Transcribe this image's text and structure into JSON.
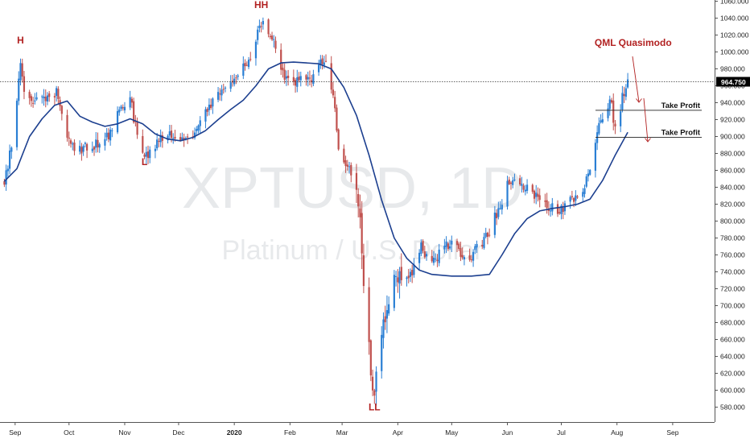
{
  "chart_data": {
    "type": "candlestick",
    "watermark": {
      "line1": "XPTUSD, 1D",
      "line2": "Platinum / U.S. Dollar"
    },
    "y_axis": {
      "ylim": [
        560,
        1060
      ],
      "ticks": [
        "1060.000",
        "1040.000",
        "1020.000",
        "1000.000",
        "980.000",
        "960.000",
        "940.000",
        "920.000",
        "900.000",
        "880.000",
        "860.000",
        "840.000",
        "820.000",
        "800.000",
        "780.000",
        "760.000",
        "740.000",
        "720.000",
        "700.000",
        "680.000",
        "660.000",
        "640.000",
        "620.000",
        "600.000",
        "580.000"
      ]
    },
    "x_axis": {
      "ticks": [
        {
          "label": "Sep",
          "bold": false
        },
        {
          "label": "Oct",
          "bold": false
        },
        {
          "label": "Nov",
          "bold": false
        },
        {
          "label": "Dec",
          "bold": false
        },
        {
          "label": "2020",
          "bold": true
        },
        {
          "label": "Feb",
          "bold": false
        },
        {
          "label": "Mar",
          "bold": false
        },
        {
          "label": "Apr",
          "bold": false
        },
        {
          "label": "May",
          "bold": false
        },
        {
          "label": "Jun",
          "bold": false
        },
        {
          "label": "Jul",
          "bold": false
        },
        {
          "label": "Aug",
          "bold": false
        },
        {
          "label": "Sep",
          "bold": false
        }
      ]
    },
    "current_price": {
      "value": 964.75,
      "label": "964.750"
    },
    "up_color": "#2a7fd4",
    "down_color": "#c0504d",
    "ma_color": "#1c3f8f",
    "annotation_color": "#b22222",
    "annotations": [
      {
        "text": "H",
        "date": "2019-09-04",
        "price": 1010
      },
      {
        "text": "L",
        "date": "2019-11-12",
        "price": 866
      },
      {
        "text": "HH",
        "date": "2020-01-16",
        "price": 1052
      },
      {
        "text": "LL",
        "date": "2020-03-19",
        "price": 576
      },
      {
        "text": "QML Quasimodo",
        "date": "2020-08-10",
        "price": 1007
      }
    ],
    "take_profit_levels": [
      {
        "label": "Take Profit",
        "price": 931
      },
      {
        "label": "Take Profit",
        "price": 899
      }
    ],
    "anchors": [
      [
        "2019-08-26",
        848
      ],
      [
        "2019-08-29",
        878
      ],
      [
        "2019-09-02",
        940
      ],
      [
        "2019-09-04",
        985
      ],
      [
        "2019-09-06",
        955
      ],
      [
        "2019-09-12",
        940
      ],
      [
        "2019-09-19",
        948
      ],
      [
        "2019-09-24",
        952
      ],
      [
        "2019-09-27",
        925
      ],
      [
        "2019-10-02",
        887
      ],
      [
        "2019-10-09",
        885
      ],
      [
        "2019-10-16",
        890
      ],
      [
        "2019-10-23",
        900
      ],
      [
        "2019-10-29",
        935
      ],
      [
        "2019-11-04",
        945
      ],
      [
        "2019-11-08",
        900
      ],
      [
        "2019-11-12",
        873
      ],
      [
        "2019-11-19",
        895
      ],
      [
        "2019-11-26",
        900
      ],
      [
        "2019-12-03",
        895
      ],
      [
        "2019-12-10",
        905
      ],
      [
        "2019-12-17",
        930
      ],
      [
        "2019-12-24",
        950
      ],
      [
        "2019-12-31",
        968
      ],
      [
        "2020-01-08",
        985
      ],
      [
        "2020-01-14",
        1020
      ],
      [
        "2020-01-17",
        1035
      ],
      [
        "2020-01-23",
        1010
      ],
      [
        "2020-01-29",
        968
      ],
      [
        "2020-02-05",
        965
      ],
      [
        "2020-02-12",
        968
      ],
      [
        "2020-02-18",
        985
      ],
      [
        "2020-02-21",
        990
      ],
      [
        "2020-02-25",
        950
      ],
      [
        "2020-02-28",
        880
      ],
      [
        "2020-03-04",
        865
      ],
      [
        "2020-03-09",
        850
      ],
      [
        "2020-03-12",
        760
      ],
      [
        "2020-03-16",
        650
      ],
      [
        "2020-03-19",
        592
      ],
      [
        "2020-03-24",
        680
      ],
      [
        "2020-03-30",
        740
      ],
      [
        "2020-04-07",
        730
      ],
      [
        "2020-04-14",
        770
      ],
      [
        "2020-04-21",
        750
      ],
      [
        "2020-04-28",
        775
      ],
      [
        "2020-05-05",
        765
      ],
      [
        "2020-05-12",
        760
      ],
      [
        "2020-05-19",
        775
      ],
      [
        "2020-05-26",
        808
      ],
      [
        "2020-06-02",
        850
      ],
      [
        "2020-06-09",
        842
      ],
      [
        "2020-06-16",
        830
      ],
      [
        "2020-06-23",
        820
      ],
      [
        "2020-06-30",
        810
      ],
      [
        "2020-07-07",
        825
      ],
      [
        "2020-07-14",
        838
      ],
      [
        "2020-07-21",
        905
      ],
      [
        "2020-07-24",
        920
      ],
      [
        "2020-07-28",
        945
      ],
      [
        "2020-07-31",
        912
      ],
      [
        "2020-08-04",
        945
      ],
      [
        "2020-08-07",
        965
      ]
    ],
    "ma_line": [
      [
        "2019-08-26",
        847
      ],
      [
        "2019-09-02",
        862
      ],
      [
        "2019-09-09",
        900
      ],
      [
        "2019-09-16",
        921
      ],
      [
        "2019-09-23",
        937
      ],
      [
        "2019-09-30",
        942
      ],
      [
        "2019-10-07",
        924
      ],
      [
        "2019-10-14",
        917
      ],
      [
        "2019-10-21",
        912
      ],
      [
        "2019-10-28",
        915
      ],
      [
        "2019-11-04",
        921
      ],
      [
        "2019-11-11",
        915
      ],
      [
        "2019-11-18",
        903
      ],
      [
        "2019-11-25",
        897
      ],
      [
        "2019-12-02",
        895
      ],
      [
        "2019-12-09",
        899
      ],
      [
        "2019-12-16",
        907
      ],
      [
        "2019-12-23",
        920
      ],
      [
        "2019-12-30",
        932
      ],
      [
        "2020-01-06",
        943
      ],
      [
        "2020-01-13",
        960
      ],
      [
        "2020-01-20",
        980
      ],
      [
        "2020-01-27",
        987
      ],
      [
        "2020-02-03",
        988
      ],
      [
        "2020-02-10",
        987
      ],
      [
        "2020-02-17",
        986
      ],
      [
        "2020-02-24",
        980
      ],
      [
        "2020-03-02",
        958
      ],
      [
        "2020-03-09",
        925
      ],
      [
        "2020-03-16",
        878
      ],
      [
        "2020-03-23",
        825
      ],
      [
        "2020-03-30",
        780
      ],
      [
        "2020-04-06",
        756
      ],
      [
        "2020-04-13",
        742
      ],
      [
        "2020-04-20",
        737
      ],
      [
        "2020-05-01",
        735
      ],
      [
        "2020-05-12",
        735
      ],
      [
        "2020-05-22",
        737
      ],
      [
        "2020-05-29",
        760
      ],
      [
        "2020-06-05",
        785
      ],
      [
        "2020-06-12",
        803
      ],
      [
        "2020-06-19",
        812
      ],
      [
        "2020-06-26",
        815
      ],
      [
        "2020-07-03",
        817
      ],
      [
        "2020-07-10",
        820
      ],
      [
        "2020-07-17",
        826
      ],
      [
        "2020-07-24",
        848
      ],
      [
        "2020-07-31",
        878
      ],
      [
        "2020-08-07",
        905
      ]
    ]
  }
}
